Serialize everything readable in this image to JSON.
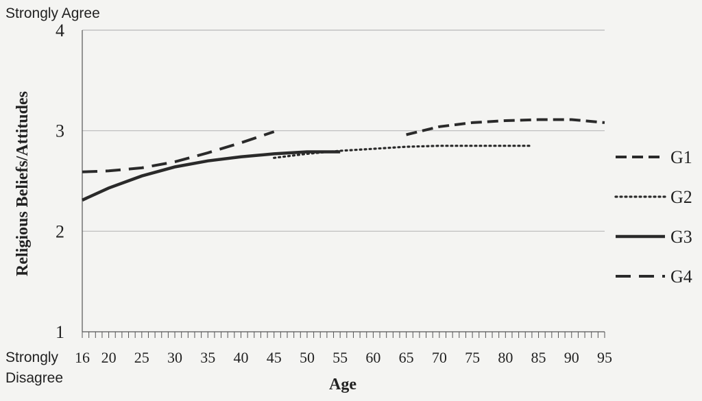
{
  "chart_data": {
    "type": "line",
    "xlabel": "Age",
    "ylabel": "Religious Beliefs/Attitudes",
    "top_anchor": "Strongly  Agree",
    "bottom_anchor_line1": "Strongly",
    "bottom_anchor_line2": "Disagree",
    "xlim": [
      16,
      95
    ],
    "ylim": [
      1,
      4
    ],
    "x_ticks": [
      16,
      20,
      25,
      30,
      35,
      40,
      45,
      50,
      55,
      60,
      65,
      70,
      75,
      80,
      85,
      90,
      95
    ],
    "y_ticks": [
      1,
      2,
      3,
      4
    ],
    "grid": "horizontal",
    "legend_position": "right",
    "series": [
      {
        "name": "G1",
        "style": "dashed",
        "x": [
          65,
          70,
          75,
          80,
          85,
          90,
          95
        ],
        "y": [
          2.96,
          3.04,
          3.08,
          3.1,
          3.11,
          3.11,
          3.08
        ]
      },
      {
        "name": "G2",
        "style": "dotted",
        "x": [
          45,
          50,
          55,
          60,
          65,
          70,
          75,
          80,
          84
        ],
        "y": [
          2.73,
          2.77,
          2.8,
          2.82,
          2.84,
          2.85,
          2.85,
          2.85,
          2.85
        ]
      },
      {
        "name": "G3",
        "style": "solid",
        "x": [
          16,
          20,
          25,
          30,
          35,
          40,
          45,
          50,
          55
        ],
        "y": [
          2.31,
          2.43,
          2.55,
          2.64,
          2.7,
          2.74,
          2.77,
          2.79,
          2.79
        ]
      },
      {
        "name": "G4",
        "style": "longdash",
        "x": [
          16,
          20,
          25,
          30,
          35,
          40,
          45
        ],
        "y": [
          2.59,
          2.6,
          2.63,
          2.69,
          2.78,
          2.88,
          2.99
        ]
      }
    ]
  },
  "colors": {
    "line": "#2a2a2a",
    "grid": "#b8b8b8",
    "background": "#f4f4f2"
  }
}
